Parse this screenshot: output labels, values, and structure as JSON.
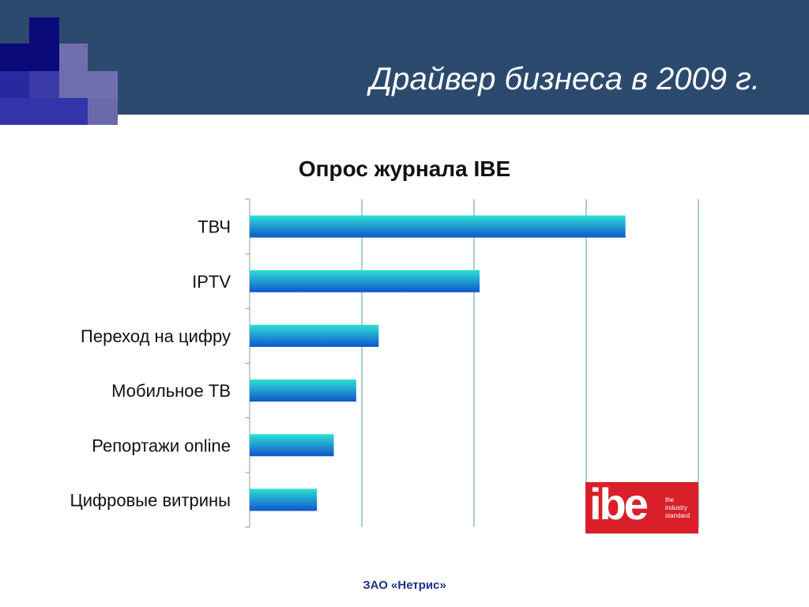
{
  "slide": {
    "title": "Драйвер бизнеса в 2009 г.",
    "footer": "ЗАО «Нетрис»"
  },
  "colors": {
    "header": "#2b4a6e",
    "bar_top": "#2fe0d4",
    "bar_bottom": "#0f56cc",
    "grid": "#8fc2b4",
    "logo": "#d9202a"
  },
  "logo": {
    "word": "ibe",
    "tagline": [
      "the",
      "industry",
      "standard"
    ]
  },
  "chart_data": {
    "type": "bar",
    "orientation": "horizontal",
    "title": "Опрос журнала IBE",
    "categories": [
      "ТВЧ",
      "IPTV",
      "Переход на цифру",
      "Мобильное ТВ",
      "Репортажи online",
      "Цифровые витрины"
    ],
    "values": [
      3.35,
      2.05,
      1.15,
      0.95,
      0.75,
      0.6
    ],
    "xlim": [
      0,
      4
    ],
    "grid": true,
    "legend": "none"
  }
}
